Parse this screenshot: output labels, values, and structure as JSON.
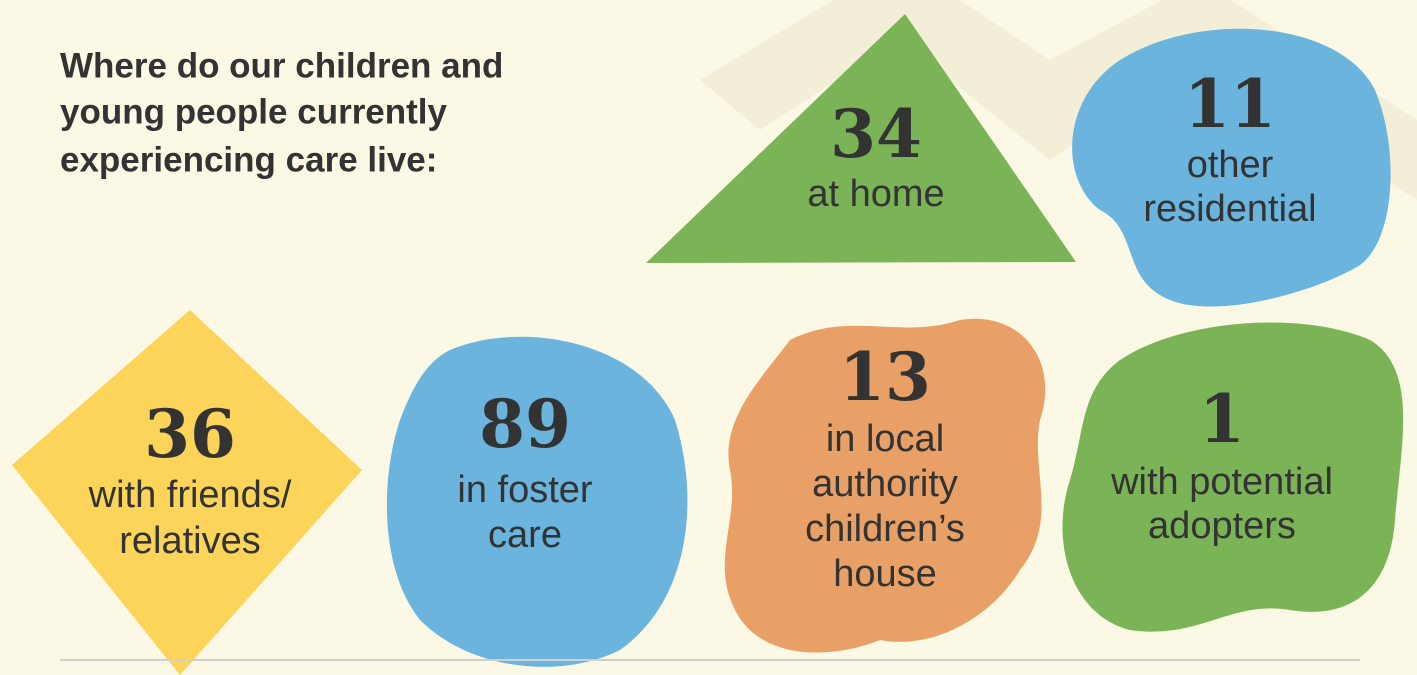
{
  "header": {
    "title_lines": [
      "Where do our children and",
      "young people currently",
      "experiencing care live:"
    ]
  },
  "items": [
    {
      "number": 34,
      "label_lines": [
        "at home"
      ]
    },
    {
      "number": 11,
      "label_lines": [
        "other",
        "residential"
      ]
    },
    {
      "number": 36,
      "label_lines": [
        "with friends/",
        "relatives"
      ]
    },
    {
      "number": 89,
      "label_lines": [
        "in foster",
        "care"
      ]
    },
    {
      "number": 13,
      "label_lines": [
        "in local",
        "authority",
        "children’s",
        "house"
      ]
    },
    {
      "number": 1,
      "label_lines": [
        "with potential",
        "adopters"
      ]
    }
  ]
}
